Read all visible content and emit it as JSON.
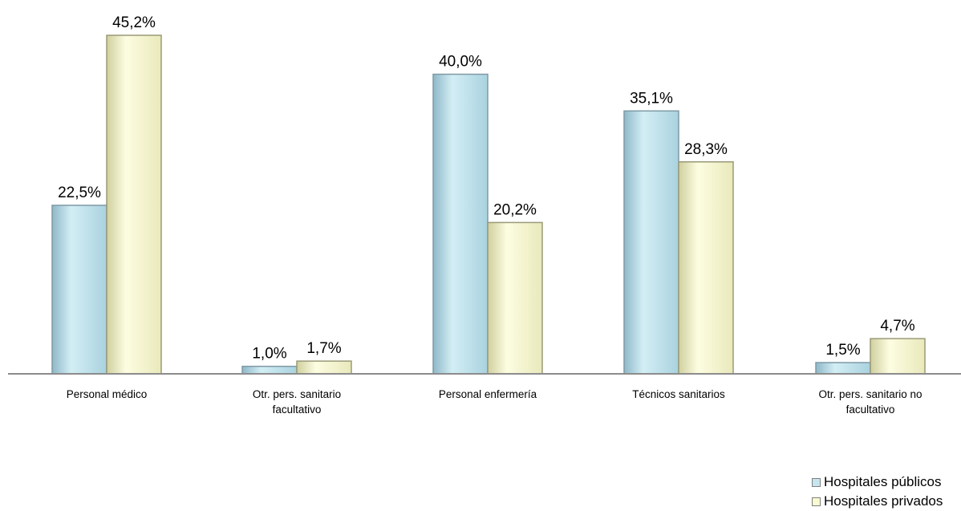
{
  "chart_data": {
    "type": "bar",
    "categories": [
      "Personal médico",
      "Otr. pers. sanitario\nfacultativo",
      "Personal enfermería",
      "Técnicos sanitarios",
      "Otr. pers. sanitario no\nfacultativo"
    ],
    "series": [
      {
        "name": "Hospitales públicos",
        "values": [
          22.5,
          1.0,
          40.0,
          35.1,
          1.5
        ],
        "labels": [
          "22,5%",
          "1,0%",
          "40,0%",
          "35,1%",
          "1,5%"
        ],
        "color": "#c6e6ef"
      },
      {
        "name": "Hospitales privados",
        "values": [
          45.2,
          1.7,
          20.2,
          28.3,
          4.7
        ],
        "labels": [
          "45,2%",
          "1,7%",
          "20,2%",
          "28,3%",
          "4,7%"
        ],
        "color": "#fafad2"
      }
    ],
    "ylim": [
      0,
      50
    ],
    "grid": false,
    "legend": "bottom-right"
  }
}
